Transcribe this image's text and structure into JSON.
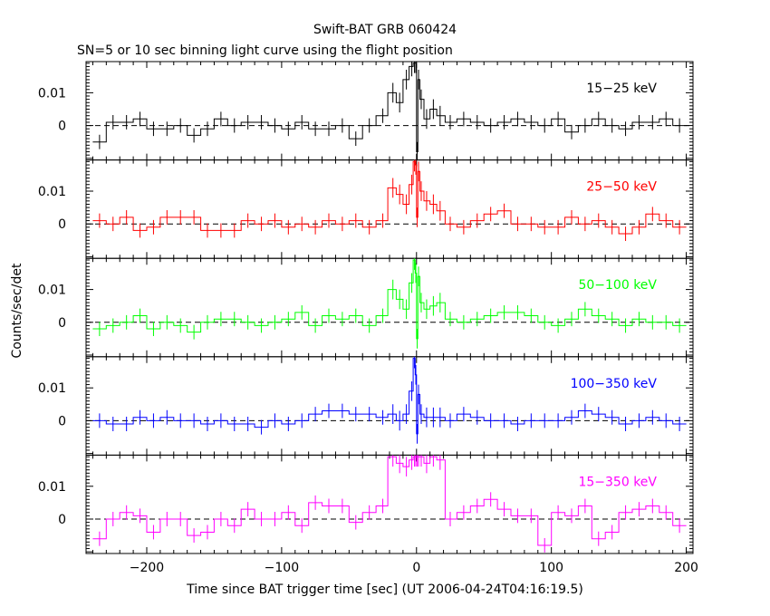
{
  "chart_data": {
    "type": "line",
    "title": "Swift-BAT GRB 060424",
    "subtitle": "SN=5 or 10 sec binning light curve using the flight position",
    "xlabel": "Time since BAT trigger time [sec] (UT 2006-04-24T04:16:19.5)",
    "ylabel": "Counts/sec/det",
    "xlim": [
      -245,
      205
    ],
    "ylim": [
      -0.0105,
      0.0195
    ],
    "x_ticks": [
      -200,
      -100,
      0,
      100,
      200
    ],
    "y_ticks": [
      0,
      0.01
    ],
    "y_tick_labels": [
      "0",
      "0.01"
    ],
    "zero_line": "dashed",
    "panels": [
      {
        "label": "15−25 keV",
        "color": "#000000",
        "series": [
          {
            "x": [
              -235,
              -225,
              -215,
              -205,
              -195,
              -185,
              -175,
              -165,
              -155,
              -145,
              -135,
              -125,
              -115,
              -105,
              -95,
              -85,
              -75,
              -65,
              -55,
              -45,
              -35,
              -25,
              -17.5,
              -12.5,
              -7.5,
              -3.5,
              -1.5,
              -0.5,
              0.5,
              1.5,
              3.5,
              7.5,
              12.5,
              17.5,
              25,
              35,
              45,
              55,
              65,
              75,
              85,
              95,
              105,
              115,
              125,
              135,
              145,
              155,
              165,
              175,
              185,
              195
            ],
            "y": [
              -0.005,
              0.001,
              0.001,
              0.002,
              -0.001,
              -0.001,
              0,
              -0.003,
              -0.001,
              0.002,
              0,
              0.001,
              0.001,
              0,
              -0.001,
              0.001,
              -0.001,
              -0.001,
              0,
              -0.004,
              0,
              0.003,
              0.01,
              0.007,
              0.014,
              0.018,
              0.019,
              0.019,
              -0.008,
              0.014,
              0.008,
              0.002,
              0.005,
              0.003,
              0.001,
              0.002,
              0.001,
              0,
              0.001,
              0.002,
              0.001,
              0,
              0.002,
              -0.002,
              0,
              0.002,
              0,
              -0.001,
              0.001,
              0.001,
              0.002,
              0
            ]
          }
        ]
      },
      {
        "label": "25−50 keV",
        "color": "#ff0000",
        "series": [
          {
            "x": [
              -235,
              -225,
              -215,
              -205,
              -195,
              -185,
              -175,
              -165,
              -155,
              -145,
              -135,
              -125,
              -115,
              -105,
              -95,
              -85,
              -75,
              -65,
              -55,
              -45,
              -35,
              -25,
              -17.5,
              -12.5,
              -7.5,
              -3.5,
              -1.5,
              -0.5,
              0.5,
              1.5,
              3.5,
              7.5,
              12.5,
              17.5,
              25,
              35,
              45,
              55,
              65,
              75,
              85,
              95,
              105,
              115,
              125,
              135,
              145,
              155,
              165,
              175,
              185,
              195
            ],
            "y": [
              0.001,
              0,
              0.002,
              -0.002,
              -0.001,
              0.002,
              0.002,
              0.002,
              -0.002,
              -0.002,
              -0.002,
              0.001,
              0,
              0.001,
              -0.001,
              0,
              -0.001,
              0.001,
              0,
              0.001,
              -0.001,
              0.001,
              0.011,
              0.009,
              0.006,
              0.012,
              0.019,
              0.018,
              0.002,
              0.016,
              0.01,
              0.007,
              0.006,
              0.004,
              0,
              -0.001,
              0.001,
              0.003,
              0.004,
              0,
              0,
              -0.001,
              -0.001,
              0.002,
              0,
              0.001,
              -0.001,
              -0.003,
              -0.001,
              0.003,
              0.001,
              -0.001
            ]
          }
        ]
      },
      {
        "label": "50−100 keV",
        "color": "#00ff00",
        "series": [
          {
            "x": [
              -235,
              -225,
              -215,
              -205,
              -195,
              -185,
              -175,
              -165,
              -155,
              -145,
              -135,
              -125,
              -115,
              -105,
              -95,
              -85,
              -75,
              -65,
              -55,
              -45,
              -35,
              -25,
              -17.5,
              -12.5,
              -7.5,
              -3.5,
              -1.5,
              -0.5,
              0.5,
              1.5,
              3.5,
              7.5,
              12.5,
              17.5,
              25,
              35,
              45,
              55,
              65,
              75,
              85,
              95,
              105,
              115,
              125,
              135,
              145,
              155,
              165,
              175,
              185,
              195
            ],
            "y": [
              -0.002,
              -0.001,
              0,
              0.002,
              -0.002,
              0,
              -0.001,
              -0.003,
              0,
              0.001,
              0.001,
              0,
              -0.001,
              0,
              0.001,
              0.003,
              -0.001,
              0.002,
              0.001,
              0.002,
              -0.001,
              0.002,
              0.01,
              0.007,
              0.004,
              0.012,
              0.019,
              0.015,
              -0.005,
              0.014,
              0.006,
              0.004,
              0.005,
              0.006,
              0.001,
              0,
              0.001,
              0.002,
              0.003,
              0.003,
              0.002,
              0,
              -0.001,
              0.001,
              0.004,
              0.002,
              0.001,
              -0.001,
              0.001,
              0,
              0,
              -0.001
            ]
          }
        ]
      },
      {
        "label": "100−350 keV",
        "color": "#0000ff",
        "series": [
          {
            "x": [
              -235,
              -225,
              -215,
              -205,
              -195,
              -185,
              -175,
              -165,
              -155,
              -145,
              -135,
              -125,
              -115,
              -105,
              -95,
              -85,
              -75,
              -65,
              -55,
              -45,
              -35,
              -25,
              -17.5,
              -12.5,
              -7.5,
              -3.5,
              -1.5,
              -0.5,
              0.5,
              1.5,
              3.5,
              7.5,
              12.5,
              17.5,
              25,
              35,
              45,
              55,
              65,
              75,
              85,
              95,
              105,
              115,
              125,
              135,
              145,
              155,
              165,
              175,
              185,
              195
            ],
            "y": [
              0,
              -0.001,
              -0.001,
              0.001,
              0,
              0.001,
              0,
              0,
              -0.001,
              0,
              -0.001,
              -0.001,
              -0.002,
              0,
              -0.001,
              0,
              0.002,
              0.003,
              0.003,
              0.002,
              0.002,
              0.001,
              0.002,
              0,
              0.002,
              0.009,
              0.019,
              0.014,
              -0.004,
              0.008,
              0.002,
              0.001,
              0.001,
              0.001,
              0,
              0.002,
              0.001,
              0,
              0,
              -0.001,
              0,
              0,
              0,
              0.001,
              0.003,
              0.002,
              0.001,
              -0.001,
              0,
              0.001,
              0,
              -0.001
            ]
          }
        ]
      },
      {
        "label": "15−350 keV",
        "color": "#ff00ff",
        "series": [
          {
            "x": [
              -235,
              -225,
              -215,
              -205,
              -195,
              -185,
              -175,
              -165,
              -155,
              -145,
              -135,
              -125,
              -115,
              -105,
              -95,
              -85,
              -75,
              -65,
              -55,
              -45,
              -35,
              -25,
              -17.5,
              -12.5,
              -7.5,
              -3.5,
              -1.5,
              -0.5,
              0.5,
              1.5,
              3.5,
              7.5,
              12.5,
              17.5,
              25,
              35,
              45,
              55,
              65,
              75,
              85,
              95,
              105,
              115,
              125,
              135,
              145,
              155,
              165,
              175,
              185,
              195
            ],
            "y": [
              -0.006,
              0,
              0.002,
              0.001,
              -0.004,
              0,
              0,
              -0.005,
              -0.004,
              0,
              -0.002,
              0.003,
              0,
              0,
              0.002,
              -0.002,
              0.005,
              0.004,
              0.004,
              -0.001,
              0.002,
              0.004,
              0.019,
              0.017,
              0.016,
              0.018,
              0.019,
              0.019,
              0.019,
              0.019,
              0.019,
              0.017,
              0.019,
              0.018,
              0,
              0.002,
              0.004,
              0.006,
              0.003,
              0.001,
              0.001,
              -0.008,
              0.002,
              0.001,
              0.004,
              -0.006,
              -0.004,
              0.002,
              0.003,
              0.004,
              0.002,
              -0.002
            ]
          }
        ]
      }
    ]
  }
}
